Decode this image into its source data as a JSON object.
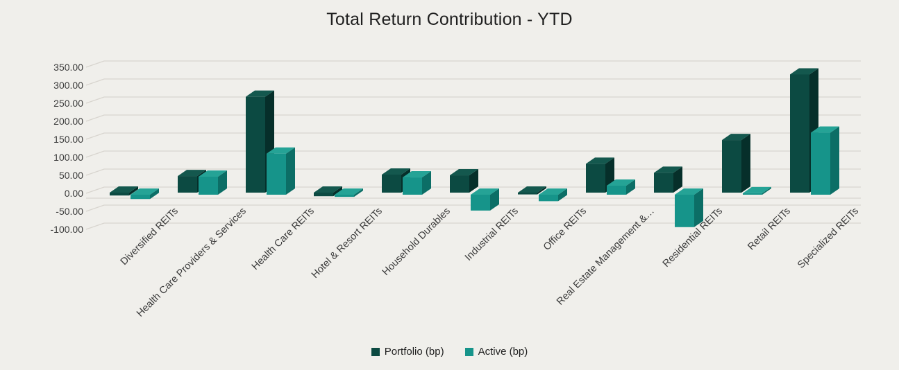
{
  "title": "Total Return Contribution - YTD",
  "legend": {
    "items": [
      {
        "label": "Portfolio (bp)"
      },
      {
        "label": "Active (bp)"
      }
    ]
  },
  "chart_data": {
    "type": "bar",
    "style": "3d-column",
    "title": "Total Return Contribution - YTD",
    "categories": [
      "Diversified REITs",
      "Health Care Providers & Services",
      "Health Care REITs",
      "Hotel & Resort REITs",
      "Household Durables",
      "Industrial REITs",
      "Office REITs",
      "Real Estate Management &…",
      "Residential REITs",
      "Retail REITs",
      "Specialized REITs"
    ],
    "series": [
      {
        "name": "Portfolio (bp)",
        "values": [
          -8,
          46,
          266,
          -10,
          50,
          48,
          -5,
          80,
          55,
          146,
          328
        ],
        "color": "#0c4a42",
        "color_side": "#062f2a",
        "color_top": "#14584e"
      },
      {
        "name": "Active (bp)",
        "values": [
          -12,
          50,
          114,
          -6,
          48,
          -44,
          -18,
          25,
          -90,
          4,
          172
        ],
        "color": "#16948a",
        "color_side": "#0c6e66",
        "color_top": "#25a396"
      }
    ],
    "ylim": [
      -100,
      350
    ],
    "ytick_step": 50,
    "yticks": [
      "350.00",
      "300.00",
      "250.00",
      "200.00",
      "150.00",
      "100.00",
      "50.00",
      "0.00",
      "-50.00",
      "-100.00"
    ],
    "grid": true,
    "legend_position": "bottom",
    "background_color": "#f0efeb",
    "gridline_color": "#d8d5cf"
  }
}
